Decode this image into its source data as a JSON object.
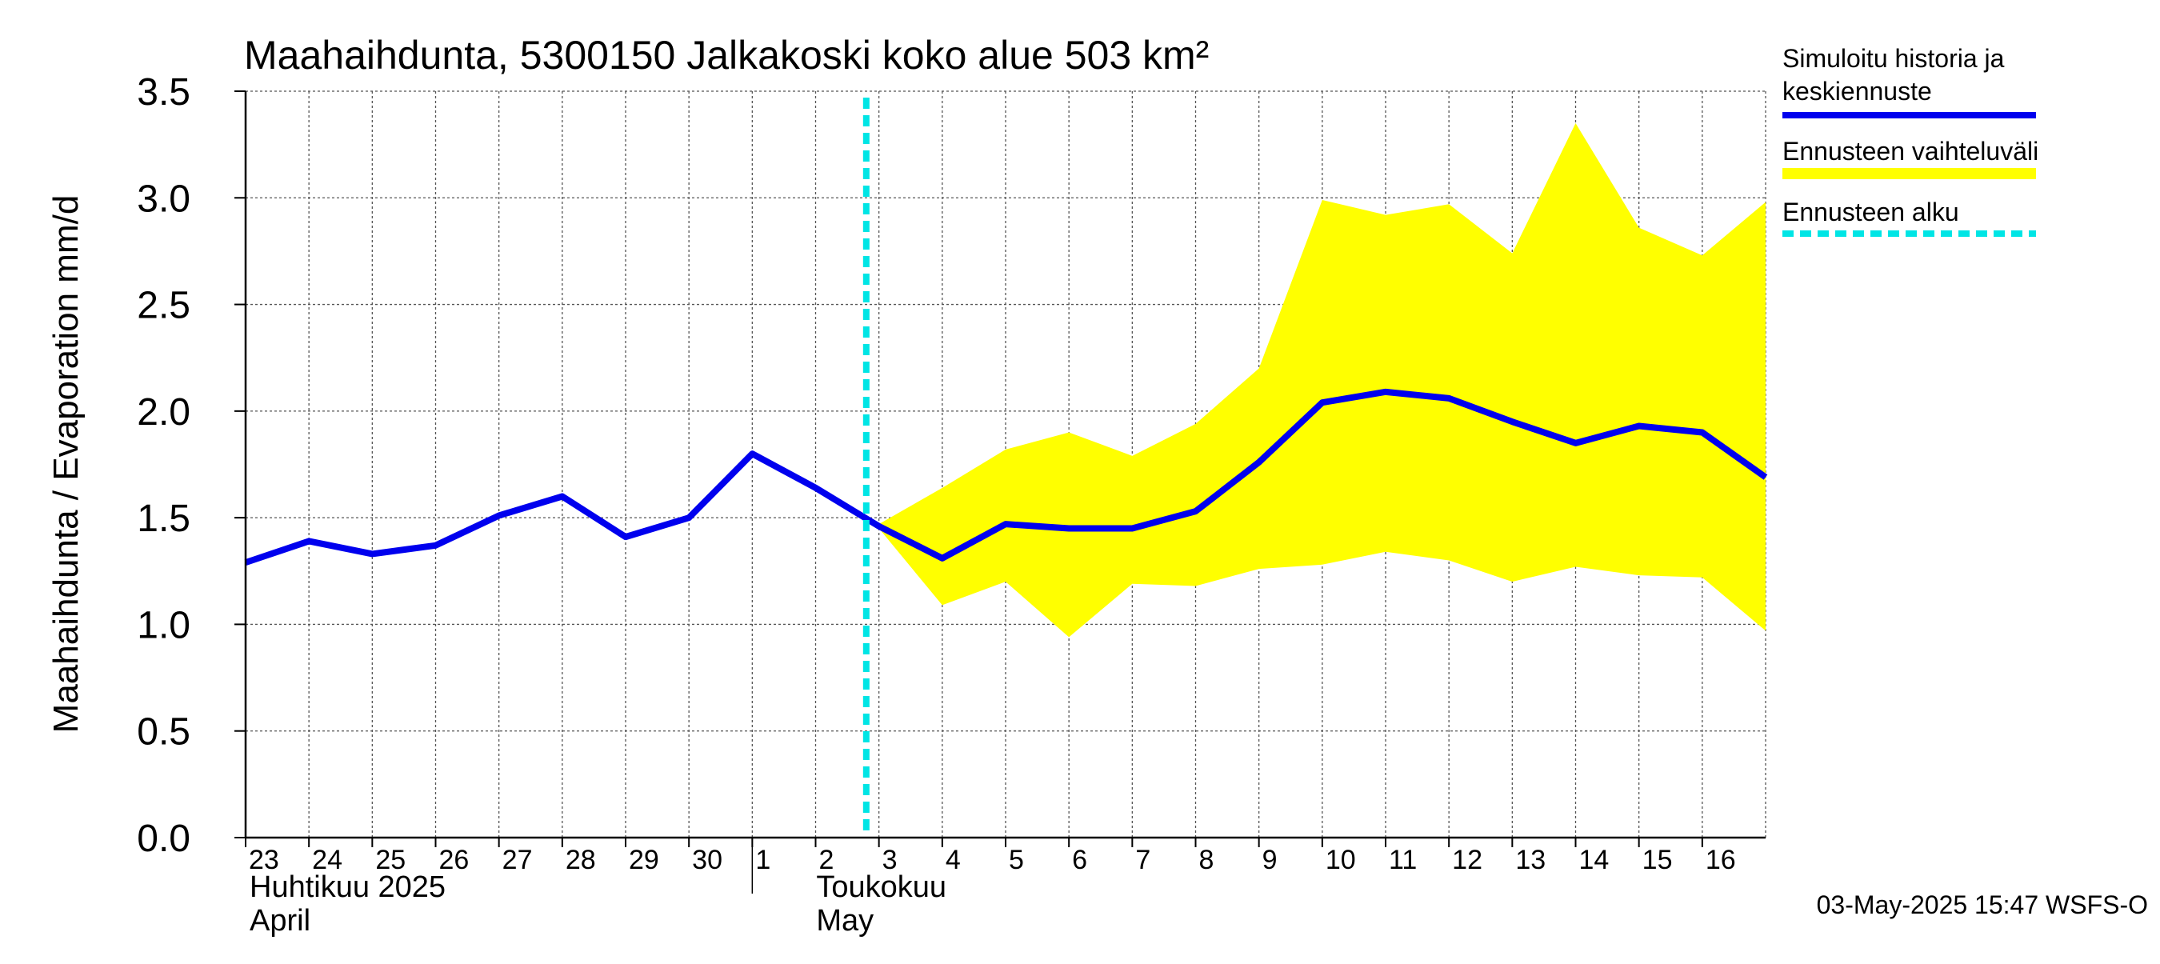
{
  "chart_data": {
    "type": "line",
    "title": "Maahaihdunta, 5300150 Jalkakoski koko alue 503 km²",
    "ylabel": "Maahaihdunta / Evaporation   mm/d",
    "ylim": [
      0.0,
      3.5
    ],
    "yticks": [
      "0.0",
      "0.5",
      "1.0",
      "1.5",
      "2.0",
      "2.5",
      "3.0",
      "3.5"
    ],
    "grid": true,
    "x_day_labels": [
      "23",
      "24",
      "25",
      "26",
      "27",
      "28",
      "29",
      "30",
      "1",
      "2",
      "3",
      "4",
      "5",
      "6",
      "7",
      "8",
      "9",
      "10",
      "11",
      "12",
      "13",
      "14",
      "15",
      "16"
    ],
    "month_labels": [
      {
        "line1": "Huhtikuu  2025",
        "line2": "April"
      },
      {
        "line1": "Toukokuu",
        "line2": "May"
      }
    ],
    "series": [
      {
        "name": "Simuloitu historia ja keskiennuste",
        "color": "#0000ee",
        "x": [
          "2025-04-23",
          "2025-04-24",
          "2025-04-25",
          "2025-04-26",
          "2025-04-27",
          "2025-04-28",
          "2025-04-29",
          "2025-04-30",
          "2025-05-01",
          "2025-05-02",
          "2025-05-03",
          "2025-05-04",
          "2025-05-05",
          "2025-05-06",
          "2025-05-07",
          "2025-05-08",
          "2025-05-09",
          "2025-05-10",
          "2025-05-11",
          "2025-05-12",
          "2025-05-13",
          "2025-05-14",
          "2025-05-15",
          "2025-05-16",
          "2025-05-17"
        ],
        "values": [
          1.29,
          1.39,
          1.33,
          1.37,
          1.51,
          1.6,
          1.41,
          1.5,
          1.8,
          1.64,
          1.46,
          1.31,
          1.47,
          1.45,
          1.45,
          1.53,
          1.76,
          2.04,
          2.09,
          2.06,
          1.95,
          1.85,
          1.93,
          1.9,
          1.69
        ]
      },
      {
        "name": "Ennusteen vaihteluväli",
        "color": "#ffff00",
        "type": "area",
        "x": [
          "2025-05-03",
          "2025-05-04",
          "2025-05-05",
          "2025-05-06",
          "2025-05-07",
          "2025-05-08",
          "2025-05-09",
          "2025-05-10",
          "2025-05-11",
          "2025-05-12",
          "2025-05-13",
          "2025-05-14",
          "2025-05-15",
          "2025-05-16",
          "2025-05-17"
        ],
        "upper": [
          1.47,
          1.64,
          1.82,
          1.9,
          1.79,
          1.94,
          2.2,
          2.99,
          2.92,
          2.97,
          2.74,
          3.35,
          2.86,
          2.73,
          2.98
        ],
        "lower": [
          1.45,
          1.09,
          1.2,
          0.94,
          1.19,
          1.18,
          1.26,
          1.28,
          1.34,
          1.3,
          1.2,
          1.27,
          1.23,
          1.22,
          0.97
        ]
      }
    ],
    "forecast_start": {
      "name": "Ennusteen alku",
      "x": "2025-05-03",
      "color": "#00e5e5"
    },
    "legend": {
      "placement": "right",
      "entries": [
        {
          "line1": "Simuloitu historia ja",
          "line2": "keskiennuste",
          "color": "#0000ee",
          "style": "solid"
        },
        {
          "line1": "Ennusteen vaihteluväli",
          "line2": "",
          "color": "#ffff00",
          "style": "band"
        },
        {
          "line1": "Ennusteen alku",
          "line2": "",
          "color": "#00e5e5",
          "style": "dashed"
        }
      ]
    },
    "timestamp": "03-May-2025 15:47 WSFS-O"
  }
}
